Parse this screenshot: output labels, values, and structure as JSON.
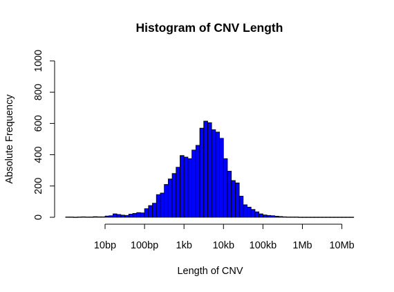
{
  "chart_data": {
    "type": "bar",
    "title": "Histogram of CNV Length",
    "xlabel": "Length of CNV",
    "ylabel": "Absolute Frequency",
    "x_scale": "log10",
    "bin_width_log10": 0.1,
    "bins_log10_start": 0.0,
    "xticks": [
      {
        "log10": 1,
        "label": "10bp"
      },
      {
        "log10": 2,
        "label": "100bp"
      },
      {
        "log10": 3,
        "label": "1kb"
      },
      {
        "log10": 4,
        "label": "10kb"
      },
      {
        "log10": 5,
        "label": "100kb"
      },
      {
        "log10": 6,
        "label": "1Mb"
      },
      {
        "log10": 7,
        "label": "10Mb"
      }
    ],
    "ylim": [
      0,
      1000
    ],
    "yticks": [
      0,
      200,
      400,
      600,
      800,
      1000
    ],
    "bar_color": "#0000ff",
    "values": [
      2,
      2,
      1,
      2,
      3,
      2,
      2,
      4,
      3,
      3,
      8,
      10,
      22,
      18,
      14,
      12,
      20,
      25,
      30,
      28,
      55,
      75,
      90,
      145,
      155,
      210,
      245,
      280,
      320,
      395,
      385,
      375,
      430,
      460,
      570,
      615,
      605,
      560,
      545,
      505,
      375,
      295,
      235,
      220,
      135,
      80,
      65,
      50,
      35,
      22,
      15,
      12,
      10,
      7,
      5,
      3,
      2,
      2,
      2,
      1,
      1,
      1,
      1,
      1,
      1,
      1,
      1,
      1,
      1,
      1,
      1,
      1,
      1
    ]
  }
}
